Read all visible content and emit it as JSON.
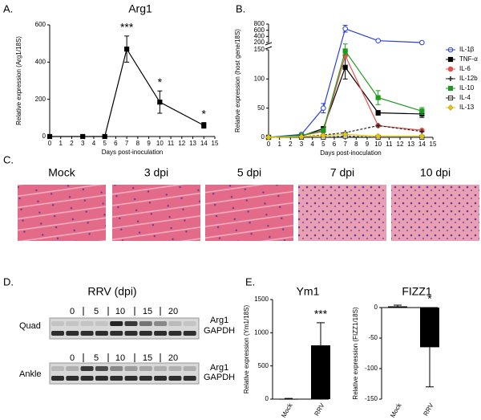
{
  "panels": {
    "labels": [
      "A.",
      "B.",
      "C.",
      "D.",
      "E."
    ]
  },
  "histology": {
    "labels": [
      "Mock",
      "3 dpi",
      "5 dpi",
      "7 dpi",
      "10 dpi"
    ]
  },
  "blot": {
    "title": "RRV (dpi)",
    "lanes": [
      "0",
      "5",
      "10",
      "15",
      "20"
    ],
    "rows": [
      "Quad",
      "Ankle"
    ],
    "bands": [
      "Arg1",
      "GAPDH"
    ]
  },
  "chart_data": [
    {
      "type": "line",
      "title": "Arg1",
      "x_label": "Days post-inoculation",
      "y_label": "Relative expression (Arg1/18S)",
      "x": [
        0,
        3,
        5,
        7,
        10,
        14
      ],
      "values": [
        0,
        0,
        0,
        470,
        185,
        60
      ],
      "errors": [
        0,
        0,
        0,
        70,
        60,
        15
      ],
      "color": "#000000",
      "marker": "square",
      "annotations": [
        {
          "text": "***",
          "x": 7
        },
        {
          "text": "*",
          "x": 10
        },
        {
          "text": "*",
          "x": 14
        }
      ],
      "xlim": [
        0,
        15
      ],
      "xticks": [
        0,
        1,
        2,
        3,
        4,
        5,
        6,
        7,
        8,
        9,
        10,
        11,
        12,
        13,
        14,
        15
      ],
      "ylim": [
        0,
        600
      ],
      "yticks": [
        0,
        200,
        400,
        600
      ]
    },
    {
      "type": "line",
      "x_label": "Days post-inoculation",
      "y_label": "Relative expression (host gene/18S)",
      "x": [
        0,
        3,
        5,
        7,
        10,
        14
      ],
      "series": [
        {
          "name": "IL-1β",
          "color": "#2b3fd6",
          "marker": "circle-open",
          "values": [
            0,
            5,
            50,
            650,
            260,
            200
          ],
          "errors": [
            0,
            1,
            8,
            110,
            20,
            10
          ]
        },
        {
          "name": "TNF-α",
          "color": "#000000",
          "marker": "square",
          "values": [
            0,
            2,
            15,
            120,
            42,
            40
          ],
          "errors": [
            0,
            1,
            3,
            20,
            4,
            6
          ]
        },
        {
          "name": "IL-6",
          "color": "#e8504a",
          "marker": "circle",
          "values": [
            0,
            3,
            10,
            140,
            20,
            12
          ]
        },
        {
          "name": "IL-12b",
          "color": "#222222",
          "marker": "plus",
          "dash": true,
          "values": [
            0,
            1,
            4,
            8,
            20,
            10
          ]
        },
        {
          "name": "IL-10",
          "color": "#1d9a1d",
          "marker": "square",
          "values": [
            0,
            3,
            12,
            148,
            68,
            45
          ],
          "errors": [
            0,
            1,
            3,
            6,
            12,
            6
          ]
        },
        {
          "name": "IL-4",
          "color": "#333333",
          "marker": "square-open",
          "dash": true,
          "values": [
            0,
            0,
            0,
            2,
            0,
            0
          ]
        },
        {
          "name": "IL-13",
          "color": "#e3c800",
          "marker": "diamond",
          "values": [
            0,
            1,
            3,
            5,
            2,
            2
          ]
        }
      ],
      "xlim": [
        0,
        15
      ],
      "xticks": [
        0,
        1,
        2,
        3,
        4,
        5,
        6,
        7,
        8,
        9,
        10,
        11,
        12,
        13,
        14,
        15
      ],
      "ylim": [
        0,
        800
      ],
      "ybreak": [
        150,
        200
      ],
      "yticks": [
        0,
        50,
        100,
        150,
        200,
        400,
        600,
        800
      ]
    },
    {
      "type": "bar",
      "title": "Ym1",
      "y_label": "Relative expression (Ym1/18S)",
      "categories": [
        "Mock",
        "RRV"
      ],
      "values": [
        5,
        810
      ],
      "errors": [
        5,
        340
      ],
      "color": "#000000",
      "annotation": "***",
      "ylim": [
        0,
        1500
      ],
      "yticks": [
        0,
        500,
        1000,
        1500
      ]
    },
    {
      "type": "bar",
      "title": "FIZZ1",
      "y_label": "Relative expression (FIZZ1/18S)",
      "categories": [
        "Mock",
        "RRV"
      ],
      "values": [
        2,
        -65
      ],
      "errors": [
        2,
        65
      ],
      "color": "#000000",
      "annotation": "*",
      "ylim": [
        -150,
        0
      ],
      "yticks": [
        0,
        -50,
        -100,
        -150
      ]
    }
  ]
}
